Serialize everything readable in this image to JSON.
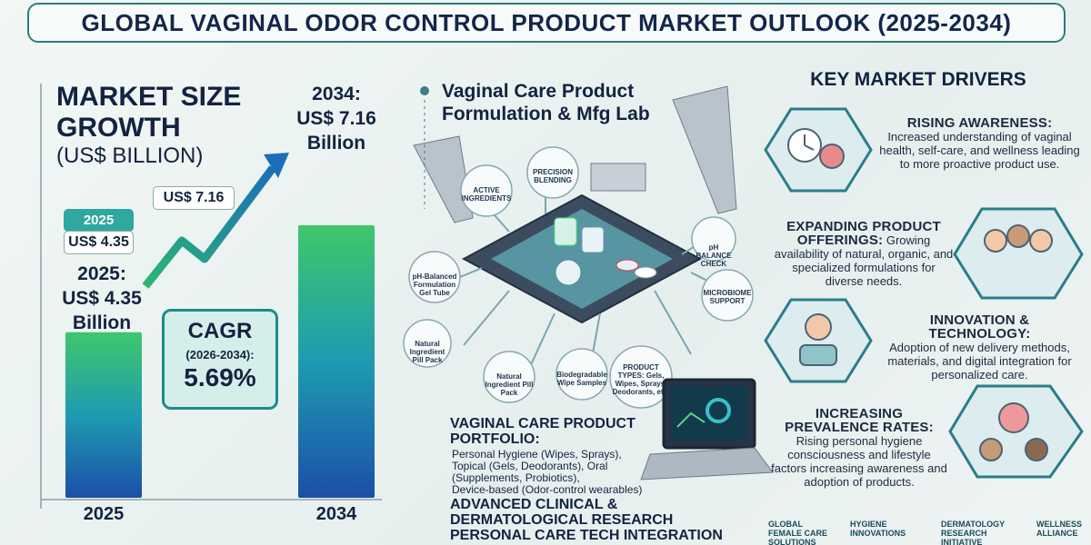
{
  "header": {
    "title": "GLOBAL VAGINAL ODOR CONTROL PRODUCT MARKET OUTLOOK (2025-2034)"
  },
  "market_size": {
    "title": "MARKET SIZE GROWTH",
    "unit": "(US$ BILLION)",
    "start_tag": {
      "year": "2025",
      "value": "US$ 4.35"
    },
    "end_tag": "US$ 7.16",
    "start_caption": {
      "year": "2025:",
      "value": "US$ 4.35",
      "unit": "Billion"
    },
    "end_caption": {
      "year": "2034:",
      "value": "US$ 7.16",
      "unit": "Billion"
    },
    "cagr": {
      "title": "CAGR",
      "period": "(2026-2034):",
      "value": "5.69%"
    },
    "bars": {
      "categories": [
        "2025",
        "2034"
      ],
      "values": [
        4.35,
        7.16
      ]
    }
  },
  "lab": {
    "title": "Vaginal Care Product Formulation & Mfg Lab",
    "labels": [
      "ACTIVE INGREDIENTS",
      "PRECISION BLENDING",
      "pH BALANCE CHECK",
      "MICROBIOME SUPPORT",
      "pH-Balanced Formulation Gel Tube",
      "Natural Ingredient Pill Pack",
      "Natural Ingredient Pill Pack",
      "Biodegradable Wipe Samples",
      "PRODUCT TYPES: Gels, Wipes, Sprays, Deodorants, etc."
    ]
  },
  "portfolio": {
    "title": "VAGINAL CARE PRODUCT PORTFOLIO:",
    "lines": [
      "Personal Hygiene (Wipes, Sprays),",
      "Topical (Gels, Deodorants), Oral",
      "(Supplements, Probiotics),",
      "Device-based (Odor-control wearables)"
    ],
    "research": [
      "ADVANCED CLINICAL &",
      "DERMATOLOGICAL RESEARCH",
      "PERSONAL CARE TECH INTEGRATION"
    ]
  },
  "drivers": {
    "title": "KEY MARKET DRIVERS",
    "items": [
      {
        "title": "RISING AWARENESS:",
        "text": "Increased understanding of vaginal health, self-care, and wellness leading to more proactive product use."
      },
      {
        "title": "EXPANDING PRODUCT OFFERINGS:",
        "text": "Growing availability of natural, organic, and specialized formulations for diverse needs."
      },
      {
        "title": "INNOVATION & TECHNOLOGY:",
        "text": "Adoption of new delivery methods, materials, and digital integration for personalized care."
      },
      {
        "title": "INCREASING PREVALENCE RATES:",
        "text": "Rising personal hygiene consciousness and lifestyle factors increasing awareness and adoption of products."
      }
    ]
  },
  "logos": [
    "GLOBAL FEMALE CARE SOLUTIONS",
    "HYGIENE INNOVATIONS",
    "DERMATOLOGY RESEARCH INITIATIVE",
    "WELLNESS ALLIANCE"
  ]
}
